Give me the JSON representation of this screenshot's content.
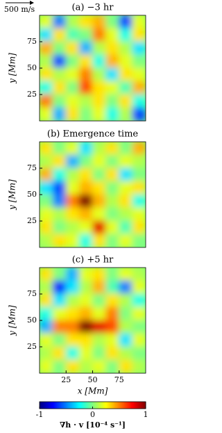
{
  "scale_label": "500 m/s",
  "chart_data": [
    {
      "type": "heatmap",
      "title": "(a) −3 hr",
      "ylabel": "y [Mm]",
      "xlim": [
        0,
        100
      ],
      "ylim": [
        0,
        100
      ],
      "yticks": [
        25,
        50,
        75
      ],
      "z": [
        [
          0.2,
          -0.5,
          0.1,
          0.3,
          0.4,
          0.0,
          -0.6,
          0.2
        ],
        [
          -0.3,
          0.3,
          -0.1,
          0.0,
          0.5,
          0.2,
          -0.2,
          0.3
        ],
        [
          0.4,
          0.0,
          0.3,
          -0.4,
          0.1,
          0.3,
          0.1,
          -0.3
        ],
        [
          0.1,
          -0.6,
          0.0,
          0.3,
          -0.2,
          0.4,
          0.2,
          0.0
        ],
        [
          0.3,
          0.1,
          0.2,
          0.5,
          0.1,
          -0.3,
          0.3,
          0.2
        ],
        [
          -0.2,
          0.3,
          0.0,
          0.6,
          0.3,
          0.2,
          -0.1,
          0.4
        ],
        [
          0.5,
          0.0,
          0.2,
          0.1,
          0.3,
          0.0,
          0.3,
          -0.2
        ],
        [
          0.2,
          -0.4,
          0.3,
          0.0,
          0.2,
          -0.2,
          0.1,
          -0.6
        ]
      ]
    },
    {
      "type": "heatmap",
      "title": "(b) Emergence time",
      "ylabel": "y [Mm]",
      "xlim": [
        0,
        100
      ],
      "ylim": [
        0,
        100
      ],
      "yticks": [
        25,
        50,
        75
      ],
      "z": [
        [
          0.3,
          0.0,
          0.2,
          -0.3,
          0.1,
          0.3,
          0.0,
          0.4
        ],
        [
          0.1,
          0.3,
          -0.4,
          0.0,
          0.2,
          0.0,
          0.2,
          0.1
        ],
        [
          0.4,
          -0.2,
          0.1,
          0.3,
          0.0,
          0.3,
          -0.3,
          0.0
        ],
        [
          -0.3,
          -0.6,
          0.2,
          0.4,
          0.3,
          0.0,
          0.2,
          0.3
        ],
        [
          0.0,
          -0.5,
          0.5,
          1.0,
          0.4,
          0.1,
          0.3,
          -0.2
        ],
        [
          0.2,
          0.1,
          0.3,
          0.4,
          0.2,
          0.0,
          0.1,
          0.2
        ],
        [
          0.3,
          0.0,
          0.1,
          0.2,
          0.8,
          0.2,
          -0.1,
          0.3
        ],
        [
          0.1,
          0.3,
          0.2,
          -0.2,
          0.3,
          0.0,
          0.2,
          0.0
        ]
      ]
    },
    {
      "type": "heatmap",
      "title": "(c) +5 hr",
      "xlabel": "x [Mm]",
      "ylabel": "y [Mm]",
      "xlim": [
        0,
        100
      ],
      "ylim": [
        0,
        100
      ],
      "xticks": [
        25,
        50,
        75
      ],
      "yticks": [
        25,
        50,
        75
      ],
      "z": [
        [
          0.3,
          0.0,
          -0.4,
          0.2,
          0.3,
          0.0,
          0.2,
          0.1
        ],
        [
          0.1,
          -0.7,
          -0.3,
          0.1,
          0.4,
          -0.1,
          -0.5,
          0.2
        ],
        [
          0.3,
          -0.3,
          0.1,
          0.2,
          0.0,
          0.3,
          0.1,
          -0.2
        ],
        [
          -0.2,
          0.2,
          0.3,
          0.4,
          0.2,
          0.5,
          0.0,
          0.2
        ],
        [
          -0.4,
          0.5,
          0.5,
          1.0,
          0.8,
          0.6,
          0.1,
          0.0
        ],
        [
          0.2,
          0.0,
          0.3,
          0.3,
          0.1,
          0.2,
          -0.3,
          0.2
        ],
        [
          0.1,
          0.3,
          -0.2,
          0.2,
          0.0,
          0.3,
          0.1,
          0.0
        ],
        [
          0.2,
          0.0,
          0.3,
          0.1,
          0.2,
          0.0,
          0.3,
          0.1
        ]
      ]
    }
  ],
  "colorbar": {
    "label": "∇h · v [10⁻⁴ s⁻¹]",
    "clim": [
      -1,
      1
    ],
    "ticks": [
      -1,
      0,
      1
    ]
  }
}
